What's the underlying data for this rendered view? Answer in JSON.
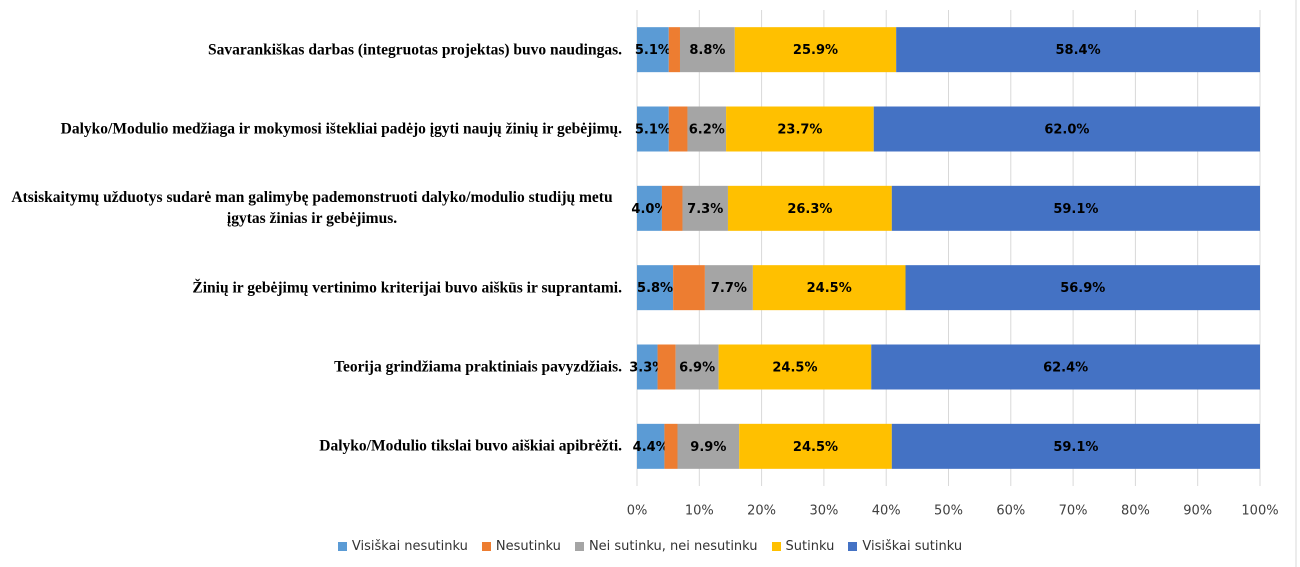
{
  "chart_data": {
    "type": "stacked-bar-horizontal",
    "categories": [
      "Savarankiškas darbas (integruotas projektas) buvo naudingas.",
      "Dalyko/Modulio medžiaga ir mokymosi ištekliai padėjo įgyti naujų žinių ir gebėjimų.",
      "Atsiskaitymų užduotys sudarė man galimybę pademonstruoti dalyko/modulio studijų metu įgytas žinias ir gebėjimus.",
      "Žinių ir gebėjimų vertinimo kriterijai buvo aiškūs ir suprantami.",
      "Teorija grindžiama praktiniais pavyzdžiais.",
      "Dalyko/Modulio tikslai buvo aiškiai apibrėžti."
    ],
    "series": [
      {
        "name": "Visiškai nesutinku",
        "color": "#5b9bd5",
        "values": [
          5.1,
          5.1,
          4.0,
          5.8,
          3.3,
          4.4
        ],
        "value_labels": [
          "5.1%",
          "5.1%",
          "4.0%",
          "5.8%",
          "3.3%",
          "4.4%"
        ]
      },
      {
        "name": "Nesutinku",
        "color": "#ed7d31",
        "values": [
          1.8,
          3.0,
          3.3,
          5.1,
          2.9,
          2.1
        ]
      },
      {
        "name": "Nei sutinku, nei nesutinku",
        "color": "#a5a5a5",
        "values": [
          8.8,
          6.2,
          7.3,
          7.7,
          6.9,
          9.9
        ],
        "value_labels": [
          "8.8%",
          "6.2%",
          "7.3%",
          "7.7%",
          "6.9%",
          "9.9%"
        ]
      },
      {
        "name": "Sutinku",
        "color": "#ffc000",
        "values": [
          25.9,
          23.7,
          26.3,
          24.5,
          24.5,
          24.5
        ],
        "value_labels": [
          "25.9%",
          "23.7%",
          "26.3%",
          "24.5%",
          "24.5%",
          "24.5%"
        ]
      },
      {
        "name": "Visiškai sutinku",
        "color": "#4472c4",
        "values": [
          58.4,
          62.0,
          59.1,
          56.9,
          62.4,
          59.1
        ],
        "value_labels": [
          "58.4%",
          "62.0%",
          "59.1%",
          "56.9%",
          "62.4%",
          "59.1%"
        ]
      }
    ],
    "xlim": [
      0,
      100
    ],
    "xticks": [
      {
        "value": 0,
        "label": "0%"
      },
      {
        "value": 10,
        "label": "10%"
      },
      {
        "value": 20,
        "label": "20%"
      },
      {
        "value": 30,
        "label": "30%"
      },
      {
        "value": 40,
        "label": "40%"
      },
      {
        "value": 50,
        "label": "50%"
      },
      {
        "value": 60,
        "label": "60%"
      },
      {
        "value": 70,
        "label": "70%"
      },
      {
        "value": 80,
        "label": "80%"
      },
      {
        "value": 90,
        "label": "90%"
      },
      {
        "value": 100,
        "label": "100%"
      }
    ],
    "grid": true,
    "legend": "bottom"
  }
}
